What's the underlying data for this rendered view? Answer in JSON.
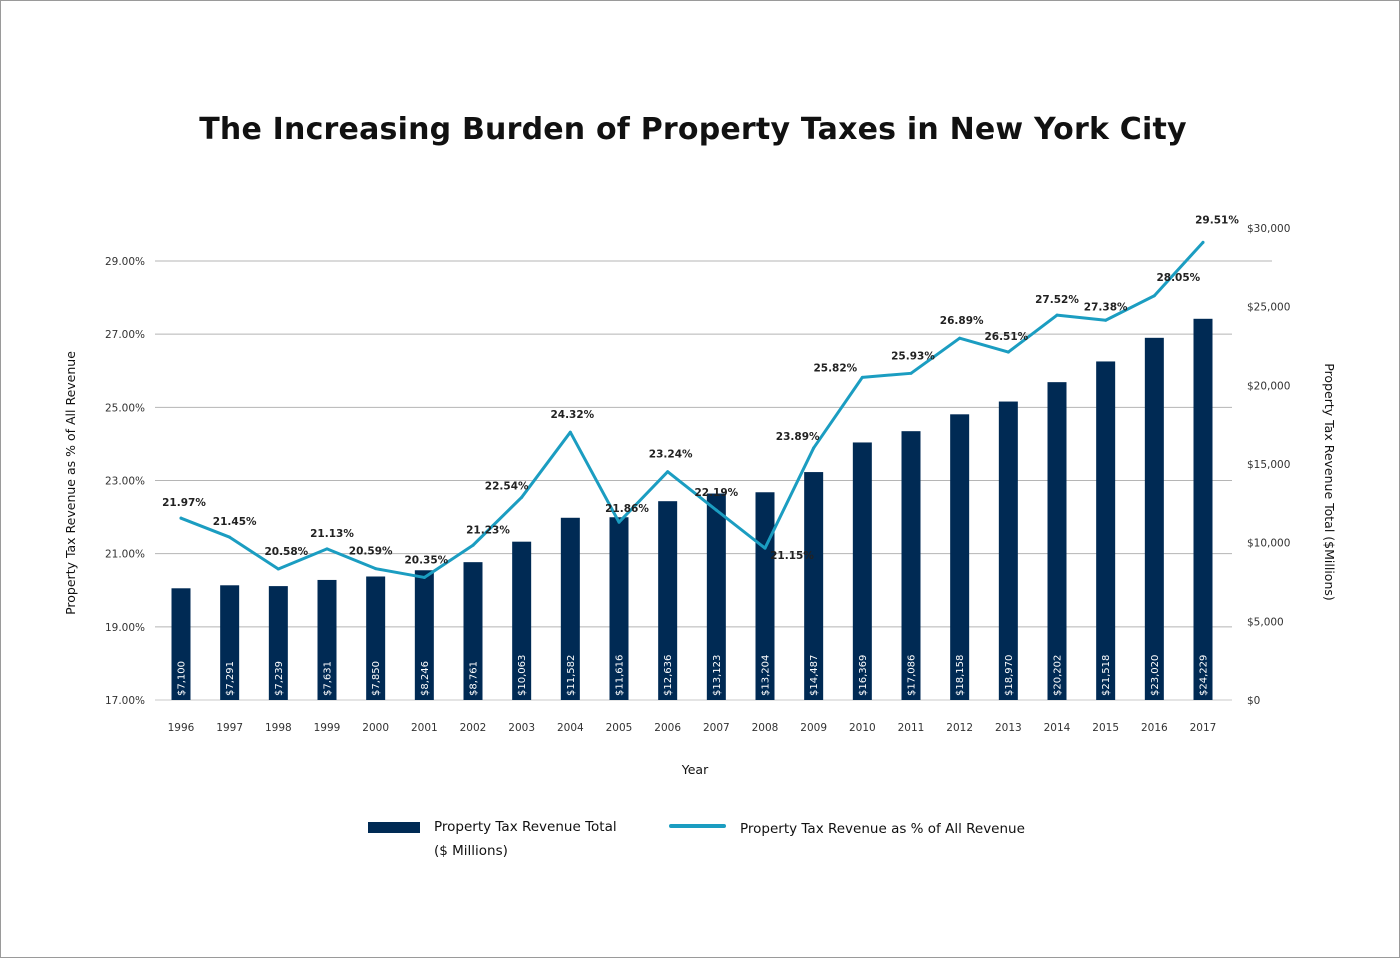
{
  "chart_data": {
    "type": "bar+line",
    "title": "The Increasing Burden of Property Taxes in New York City",
    "xlabel": "Year",
    "ylabel_left": "Property Tax Revenue as % of All Revenue",
    "ylabel_right": "Property Tax Revenue Total ($Millions)",
    "categories": [
      "1996",
      "1997",
      "1998",
      "1999",
      "2000",
      "2001",
      "2002",
      "2003",
      "2004",
      "2005",
      "2006",
      "2007",
      "2008",
      "2009",
      "2010",
      "2011",
      "2012",
      "2013",
      "2014",
      "2015",
      "2016",
      "2017"
    ],
    "series": [
      {
        "name": "Property Tax Revenue Total ($ Millions)",
        "type": "bar",
        "axis": "right",
        "color": "#002a54",
        "values": [
          7100,
          7291,
          7239,
          7631,
          7850,
          8246,
          8761,
          10063,
          11582,
          11616,
          12636,
          13123,
          13204,
          14487,
          16369,
          17086,
          18158,
          18970,
          20202,
          21518,
          23020,
          24229
        ],
        "labels": [
          "$7,100",
          "$7,291",
          "$7,239",
          "$7,631",
          "$7,850",
          "$8,246",
          "$8,761",
          "$10,063",
          "$11,582",
          "$11,616",
          "$12,636",
          "$13,123",
          "$13,204",
          "$14,487",
          "$16,369",
          "$17,086",
          "$18,158",
          "$18,970",
          "$20,202",
          "$21,518",
          "$23,020",
          "$24,229"
        ]
      },
      {
        "name": "Property Tax Revenue as % of All Revenue",
        "type": "line",
        "axis": "left",
        "color": "#1b9dc1",
        "values": [
          21.97,
          21.45,
          20.58,
          21.13,
          20.59,
          20.35,
          21.23,
          22.54,
          24.32,
          21.86,
          23.24,
          22.19,
          21.15,
          23.89,
          25.82,
          25.93,
          26.89,
          26.51,
          27.52,
          27.38,
          28.05,
          29.51
        ],
        "labels": [
          "21.97%",
          "21.45%",
          "20.58%",
          "21.13%",
          "20.59%",
          "20.35%",
          "21.23%",
          "22.54%",
          "24.32%",
          "21.86%",
          "23.24%",
          "22.19%",
          "21.15%",
          "23.89%",
          "25.82%",
          "25.93%",
          "26.89%",
          "26.51%",
          "27.52%",
          "27.38%",
          "28.05%",
          "29.51%"
        ]
      }
    ],
    "y_left": {
      "range": [
        17,
        29
      ],
      "ticks": [
        17,
        19,
        21,
        23,
        25,
        27,
        29
      ],
      "tick_labels": [
        "17.00%",
        "19.00%",
        "21.00%",
        "23.00%",
        "25.00%",
        "27.00%",
        "29.00%"
      ]
    },
    "y_right": {
      "range": [
        0,
        30000
      ],
      "ticks": [
        0,
        5000,
        10000,
        15000,
        20000,
        25000,
        30000
      ],
      "tick_labels": [
        "$0",
        "$5,000",
        "$10,000",
        "$15,000",
        "$20,000",
        "$25,000",
        "$30,000"
      ]
    },
    "grid": true,
    "legend": {
      "position": "bottom",
      "bar_label_line1": "Property Tax Revenue Total",
      "bar_label_line2": "($ Millions)",
      "line_label": "Property Tax Revenue as % of All Revenue"
    }
  }
}
